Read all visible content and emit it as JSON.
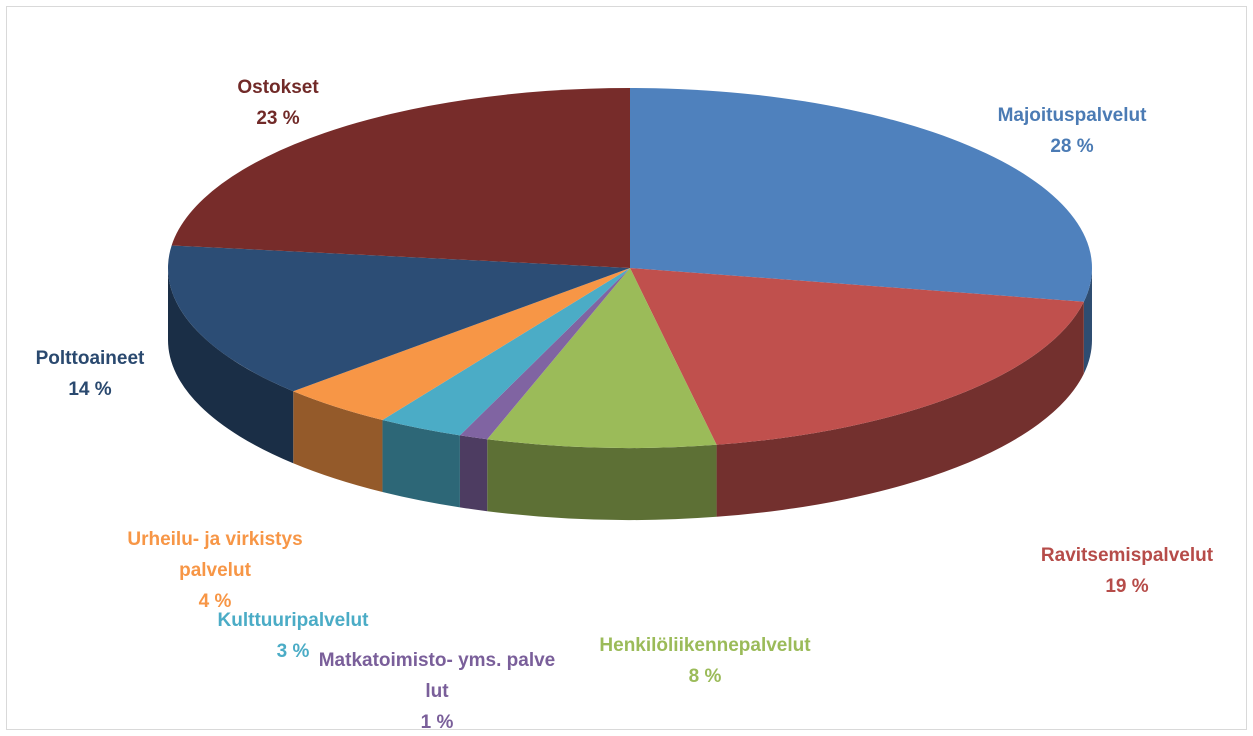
{
  "chart_data": {
    "type": "pie3d",
    "categories": [
      "Majoituspalvelut",
      "Ravitsemispalvelut",
      "Henkilöliikennepalvelut",
      "Matkatoimisto- yms. palvelut",
      "Kulttuuripalvelut",
      "Urheilu- ja virkistyspalvelut",
      "Polttoaineet",
      "Ostokset"
    ],
    "values": [
      28,
      19,
      8,
      1,
      3,
      4,
      14,
      23
    ],
    "value_labels": [
      "28 %",
      "19 %",
      "8 %",
      "1 %",
      "3 %",
      "4 %",
      "14 %",
      "23 %"
    ],
    "colors": [
      "#4f81bd",
      "#c0504d",
      "#9bbb59",
      "#8064a2",
      "#4bacc6",
      "#f79646",
      "#2c4d75",
      "#772c2a"
    ]
  }
}
